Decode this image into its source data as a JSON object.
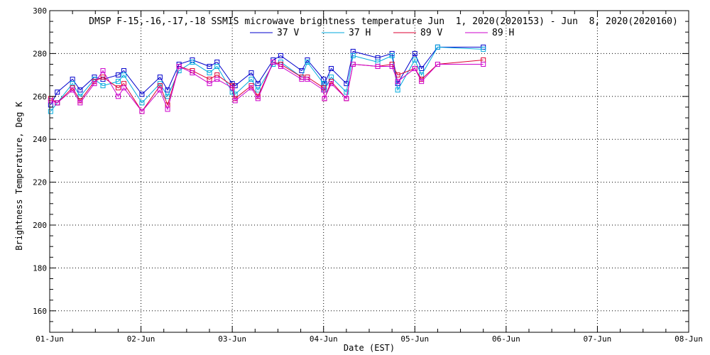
{
  "chart_data": {
    "type": "line",
    "title": "DMSP F-15,-16,-17,-18 SSMIS microwave brightness temperature Jun  1, 2020(2020153) - Jun  8, 2020(2020160)",
    "xlabel": "Date (EST)",
    "ylabel": "Brightness Temperature, Deg K",
    "ylim": [
      150,
      300
    ],
    "yticks": [
      160,
      180,
      200,
      220,
      240,
      260,
      280,
      300
    ],
    "xlim": [
      "2020-06-01T00:00",
      "2020-06-08T00:00"
    ],
    "xticks": [
      "01-Jun",
      "02-Jun",
      "03-Jun",
      "04-Jun",
      "05-Jun",
      "06-Jun",
      "07-Jun",
      "08-Jun"
    ],
    "grid": true,
    "legend_position": "top-center",
    "x": [
      "2020-06-01T00:15",
      "2020-06-01T02:00",
      "2020-06-01T06:00",
      "2020-06-01T08:00",
      "2020-06-01T11:45",
      "2020-06-01T14:00",
      "2020-06-01T18:00",
      "2020-06-01T19:30",
      "2020-06-02T00:15",
      "2020-06-02T05:00",
      "2020-06-02T07:00",
      "2020-06-02T10:00",
      "2020-06-02T13:30",
      "2020-06-02T18:00",
      "2020-06-02T20:00",
      "2020-06-03T00:45",
      "2020-06-03T05:00",
      "2020-06-03T06:45",
      "2020-06-03T10:45",
      "2020-06-03T12:45",
      "2020-06-03T18:15",
      "2020-06-03T19:45",
      "2020-06-03T00:00",
      "2020-06-04T00:15",
      "2020-06-04T02:00",
      "2020-06-04T06:00",
      "2020-06-04T07:45",
      "2020-06-04T14:15",
      "2020-06-04T18:00",
      "2020-06-04T19:30",
      "2020-06-04T00:00",
      "2020-06-05T01:45",
      "2020-06-05T06:00",
      "2020-06-05T00:00",
      "2020-06-05T18:00",
      "2020-06-05T19:00"
    ],
    "series": [
      {
        "name": "37 V",
        "color": "#0000cc",
        "values": [
          256,
          262,
          268,
          263,
          269,
          268,
          270,
          272,
          261,
          269,
          263,
          275,
          277,
          274,
          276,
          265,
          271,
          266,
          277,
          279,
          272,
          277,
          266,
          266,
          273,
          266,
          281,
          278,
          280,
          266,
          268,
          273,
          283,
          280,
          283,
          null
        ]
      },
      {
        "name": "37 H",
        "color": "#00aadd",
        "values": [
          253,
          257,
          266,
          260,
          268,
          265,
          267,
          270,
          257,
          266,
          260,
          272,
          276,
          271,
          274,
          261,
          268,
          263,
          275,
          276,
          269,
          276,
          262,
          263,
          269,
          262,
          279,
          276,
          279,
          263,
          266,
          270,
          283,
          277,
          282,
          null
        ]
      },
      {
        "name": "89 V",
        "color": "#dd0033",
        "values": [
          259,
          257,
          264,
          258,
          267,
          269,
          264,
          266,
          253,
          265,
          256,
          274,
          272,
          268,
          270,
          259,
          265,
          260,
          276,
          275,
          269,
          269,
          265,
          259,
          267,
          259,
          275,
          274,
          275,
          270,
          264,
          268,
          275,
          273,
          277,
          null
        ]
      },
      {
        "name": "89 H",
        "color": "#cc00cc",
        "values": [
          258,
          257,
          263,
          257,
          266,
          272,
          260,
          264,
          253,
          263,
          254,
          274,
          271,
          266,
          268,
          258,
          264,
          259,
          276,
          274,
          268,
          268,
          264,
          259,
          266,
          259,
          275,
          274,
          274,
          267,
          263,
          267,
          275,
          273,
          275,
          null
        ]
      }
    ]
  }
}
